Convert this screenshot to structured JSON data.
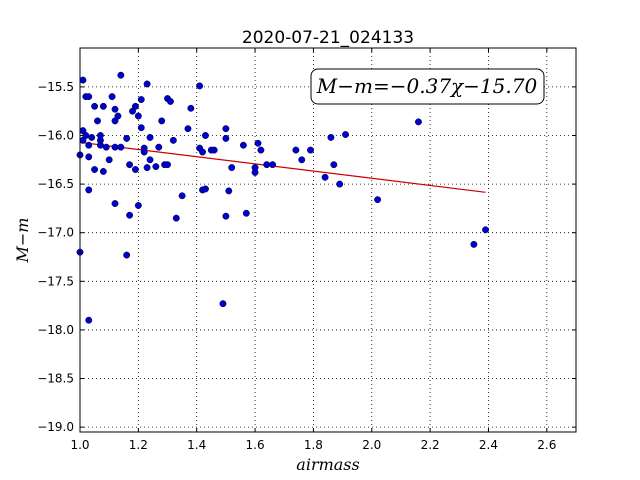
{
  "chart_data": {
    "type": "scatter",
    "title": "2020-07-21_024133",
    "xlabel": "airmass",
    "ylabel": "M−m",
    "xlim": [
      1.0,
      2.7
    ],
    "ylim": [
      -19.05,
      -15.1
    ],
    "x_ticks": [
      1.0,
      1.2,
      1.4,
      1.6,
      1.8,
      2.0,
      2.2,
      2.4,
      2.6
    ],
    "y_ticks": [
      -15.5,
      -16.0,
      -16.5,
      -17.0,
      -17.5,
      -18.0,
      -18.5,
      -19.0
    ],
    "x_tick_labels": [
      "1.0",
      "1.2",
      "1.4",
      "1.6",
      "1.8",
      "2.0",
      "2.2",
      "2.4",
      "2.6"
    ],
    "y_tick_labels": [
      "−15.5",
      "−16.0",
      "−16.5",
      "−17.0",
      "−17.5",
      "−18.0",
      "−18.5",
      "−19.0"
    ],
    "grid": true,
    "annotation": "M−m=−0.37χ−15.70",
    "fit_line": {
      "slope": -0.37,
      "intercept": -15.7,
      "x_range": [
        1.0,
        2.39
      ],
      "color": "#cc0000"
    },
    "marker_color": "#0000cc",
    "points": [
      [
        1.0,
        -16.2
      ],
      [
        1.0,
        -17.2
      ],
      [
        1.01,
        -15.95
      ],
      [
        1.01,
        -16.05
      ],
      [
        1.01,
        -15.43
      ],
      [
        1.02,
        -15.6
      ],
      [
        1.02,
        -16.0
      ],
      [
        1.03,
        -15.6
      ],
      [
        1.03,
        -16.1
      ],
      [
        1.03,
        -16.22
      ],
      [
        1.03,
        -16.56
      ],
      [
        1.03,
        -17.9
      ],
      [
        1.04,
        -16.02
      ],
      [
        1.05,
        -15.7
      ],
      [
        1.05,
        -16.35
      ],
      [
        1.06,
        -15.85
      ],
      [
        1.07,
        -16.05
      ],
      [
        1.07,
        -16.1
      ],
      [
        1.07,
        -16.0
      ],
      [
        1.08,
        -15.7
      ],
      [
        1.08,
        -16.37
      ],
      [
        1.09,
        -16.12
      ],
      [
        1.1,
        -16.25
      ],
      [
        1.11,
        -15.6
      ],
      [
        1.12,
        -15.85
      ],
      [
        1.12,
        -15.73
      ],
      [
        1.12,
        -16.12
      ],
      [
        1.12,
        -16.7
      ],
      [
        1.13,
        -15.8
      ],
      [
        1.14,
        -15.38
      ],
      [
        1.14,
        -16.12
      ],
      [
        1.16,
        -17.23
      ],
      [
        1.16,
        -16.03
      ],
      [
        1.17,
        -16.3
      ],
      [
        1.17,
        -16.82
      ],
      [
        1.18,
        -15.75
      ],
      [
        1.19,
        -15.7
      ],
      [
        1.19,
        -16.35
      ],
      [
        1.2,
        -15.8
      ],
      [
        1.2,
        -16.72
      ],
      [
        1.21,
        -15.63
      ],
      [
        1.21,
        -15.92
      ],
      [
        1.22,
        -16.13
      ],
      [
        1.22,
        -16.17
      ],
      [
        1.23,
        -16.33
      ],
      [
        1.23,
        -15.47
      ],
      [
        1.24,
        -16.02
      ],
      [
        1.24,
        -16.25
      ],
      [
        1.26,
        -16.32
      ],
      [
        1.27,
        -16.12
      ],
      [
        1.28,
        -15.85
      ],
      [
        1.29,
        -16.3
      ],
      [
        1.3,
        -15.62
      ],
      [
        1.3,
        -16.3
      ],
      [
        1.31,
        -15.65
      ],
      [
        1.32,
        -16.05
      ],
      [
        1.33,
        -16.85
      ],
      [
        1.35,
        -16.62
      ],
      [
        1.37,
        -15.93
      ],
      [
        1.38,
        -15.72
      ],
      [
        1.41,
        -15.49
      ],
      [
        1.41,
        -16.13
      ],
      [
        1.42,
        -16.17
      ],
      [
        1.42,
        -16.56
      ],
      [
        1.43,
        -16.0
      ],
      [
        1.43,
        -16.55
      ],
      [
        1.45,
        -16.15
      ],
      [
        1.46,
        -16.15
      ],
      [
        1.49,
        -17.73
      ],
      [
        1.5,
        -16.03
      ],
      [
        1.5,
        -16.83
      ],
      [
        1.5,
        -15.93
      ],
      [
        1.51,
        -16.57
      ],
      [
        1.52,
        -16.33
      ],
      [
        1.56,
        -16.1
      ],
      [
        1.57,
        -16.8
      ],
      [
        1.6,
        -16.33
      ],
      [
        1.6,
        -16.38
      ],
      [
        1.61,
        -16.08
      ],
      [
        1.62,
        -16.15
      ],
      [
        1.64,
        -16.3
      ],
      [
        1.66,
        -16.3
      ],
      [
        1.74,
        -16.15
      ],
      [
        1.76,
        -16.25
      ],
      [
        1.79,
        -16.15
      ],
      [
        1.84,
        -16.43
      ],
      [
        1.86,
        -16.02
      ],
      [
        1.87,
        -16.3
      ],
      [
        1.89,
        -16.5
      ],
      [
        1.91,
        -15.99
      ],
      [
        2.02,
        -16.66
      ],
      [
        2.16,
        -15.86
      ],
      [
        2.35,
        -17.12
      ],
      [
        2.39,
        -16.97
      ]
    ]
  }
}
